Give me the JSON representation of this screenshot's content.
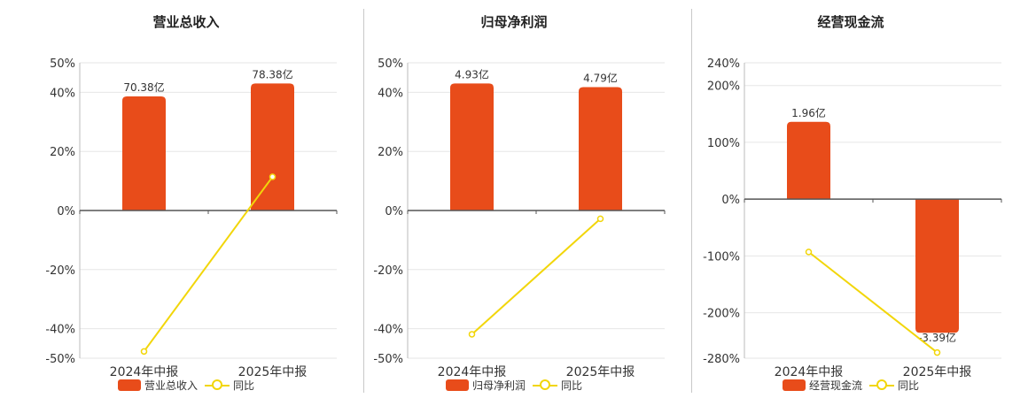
{
  "colors": {
    "bar": "#e84c1a",
    "line": "#f2d60a",
    "grid": "#e6e6e6",
    "axis": "#555555",
    "divider": "#c8c8c8"
  },
  "chart_data": [
    {
      "type": "bar",
      "title": "营业总收入",
      "categories": [
        "2024年中报",
        "2025年中报"
      ],
      "bar_series": {
        "name": "营业总收入",
        "values": [
          70.38,
          78.38
        ],
        "labels": [
          "70.38亿",
          "78.38亿"
        ]
      },
      "line_series": {
        "name": "同比",
        "values": [
          -47.7,
          11.4
        ]
      },
      "ylim": [
        -50,
        50
      ],
      "yticks": [
        50,
        40,
        20,
        0,
        -20,
        -40,
        -50
      ],
      "yticklabels": [
        "50%",
        "40%",
        "20%",
        "0%",
        "-20%",
        "-40%",
        "-50%"
      ],
      "bar_scale_max": 78.38,
      "bar_scale_pct": 43
    },
    {
      "type": "bar",
      "title": "归母净利润",
      "categories": [
        "2024年中报",
        "2025年中报"
      ],
      "bar_series": {
        "name": "归母净利润",
        "values": [
          4.93,
          4.79
        ],
        "labels": [
          "4.93亿",
          "4.79亿"
        ]
      },
      "line_series": {
        "name": "同比",
        "values": [
          -41.9,
          -2.8
        ]
      },
      "ylim": [
        -50,
        50
      ],
      "yticks": [
        50,
        40,
        20,
        0,
        -20,
        -40,
        -50
      ],
      "yticklabels": [
        "50%",
        "40%",
        "20%",
        "0%",
        "-20%",
        "-40%",
        "-50%"
      ],
      "bar_scale_max": 4.93,
      "bar_scale_pct": 43
    },
    {
      "type": "bar",
      "title": "经营现金流",
      "categories": [
        "2024年中报",
        "2025年中报"
      ],
      "bar_series": {
        "name": "经营现金流",
        "values": [
          1.96,
          -3.39
        ],
        "labels": [
          "1.96亿",
          "-3.39亿"
        ]
      },
      "line_series": {
        "name": "同比",
        "values": [
          -93,
          -270
        ]
      },
      "ylim": [
        -280,
        240
      ],
      "yticks": [
        240,
        200,
        100,
        0,
        -100,
        -200,
        -280
      ],
      "yticklabels": [
        "240%",
        "200%",
        "100%",
        "0%",
        "-100%",
        "-200%",
        "-280%"
      ],
      "bar_scale_max": 1.96,
      "bar_scale_pct": 136
    }
  ]
}
